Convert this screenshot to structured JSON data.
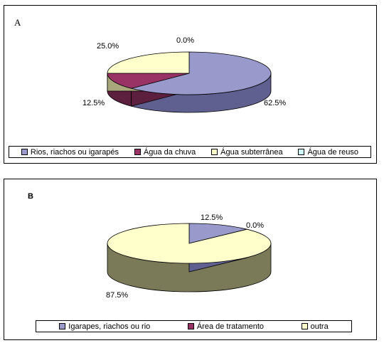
{
  "chart_data": [
    {
      "type": "pie",
      "panel_label": "A",
      "title": "",
      "labels": [
        "Rios, riachos ou igarapés",
        "Água da chuva",
        "Água subterrânea",
        "Água de reuso"
      ],
      "values": [
        62.5,
        12.5,
        25.0,
        0.0
      ],
      "value_labels": [
        "62.5%",
        "12.5%",
        "25.0%",
        "0.0%"
      ],
      "colors": [
        "#9999cc",
        "#993366",
        "#ffffcc",
        "#ccffff"
      ],
      "side_colors": [
        "#5f5f90",
        "#5c1f3d",
        "#a8a87c",
        "#7fb0b0"
      ],
      "legend_position": "bottom",
      "style": "3d"
    },
    {
      "type": "pie",
      "panel_label": "B",
      "title": "",
      "labels": [
        "Igarapes, riachos ou rio",
        "Área de tratamento",
        "outra"
      ],
      "values": [
        12.5,
        0.0,
        87.5
      ],
      "value_labels": [
        "12.5%",
        "0.0%",
        "87.5%"
      ],
      "colors": [
        "#9999cc",
        "#993366",
        "#ffffcc"
      ],
      "side_colors": [
        "#5f5f90",
        "#5c1f3d",
        "#7a7a59"
      ],
      "legend_position": "bottom",
      "style": "3d"
    }
  ]
}
